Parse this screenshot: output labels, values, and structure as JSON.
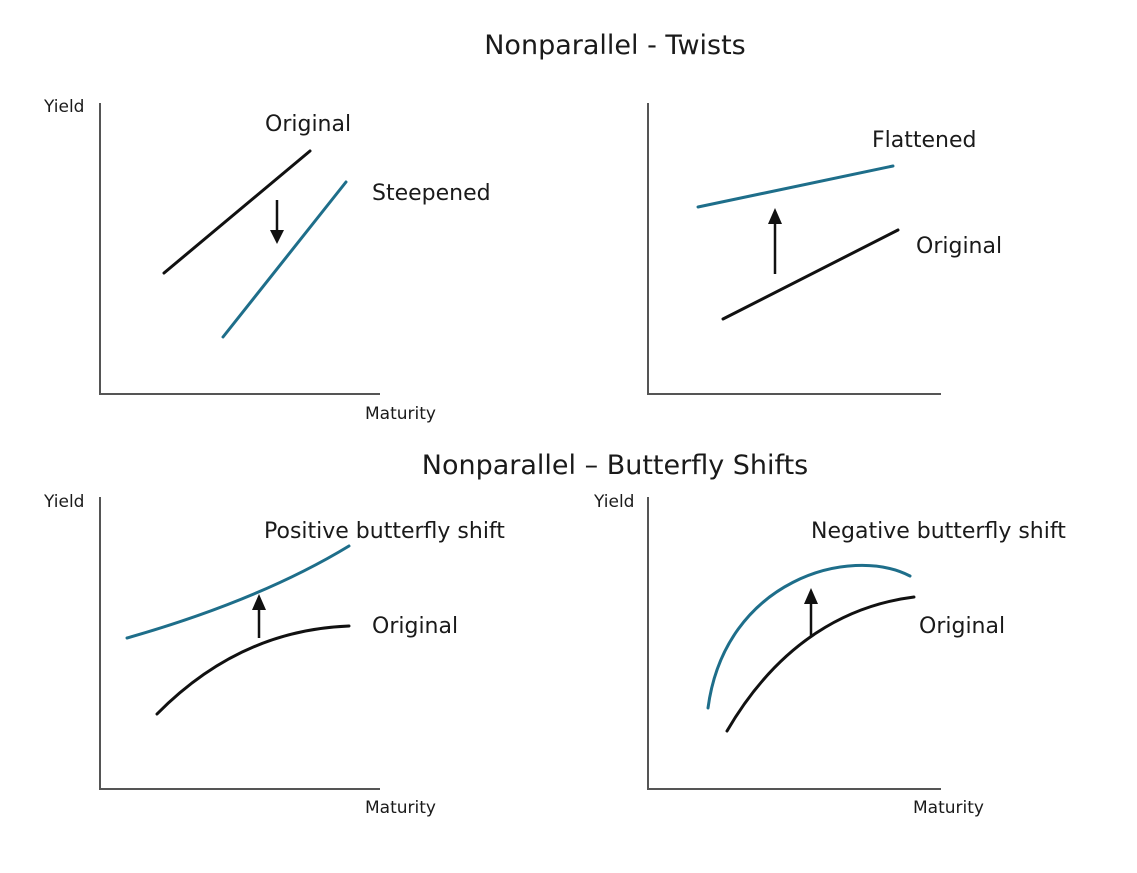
{
  "colors": {
    "original": "#111111",
    "shifted": "#1e6e8a",
    "axis": "#555555"
  },
  "sections": {
    "twists": {
      "title": "Nonparallel - Twists"
    },
    "butterfly": {
      "title": "Nonparallel – Butterfly Shifts"
    }
  },
  "panels": {
    "steepened": {
      "y_axis_label": "Yield",
      "x_axis_label": "Maturity",
      "original_label": "Original",
      "shifted_label": "Steepened"
    },
    "flattened": {
      "y_axis_label": "",
      "x_axis_label": "",
      "original_label": "Original",
      "shifted_label": "Flattened"
    },
    "positive_butterfly": {
      "y_axis_label": "Yield",
      "x_axis_label": "Maturity",
      "original_label": "Original",
      "shifted_label": "Positive butterfly shift"
    },
    "negative_butterfly": {
      "y_axis_label": "Yield",
      "x_axis_label": "Maturity",
      "original_label": "Original",
      "shifted_label": "Negative butterfly shift"
    }
  }
}
